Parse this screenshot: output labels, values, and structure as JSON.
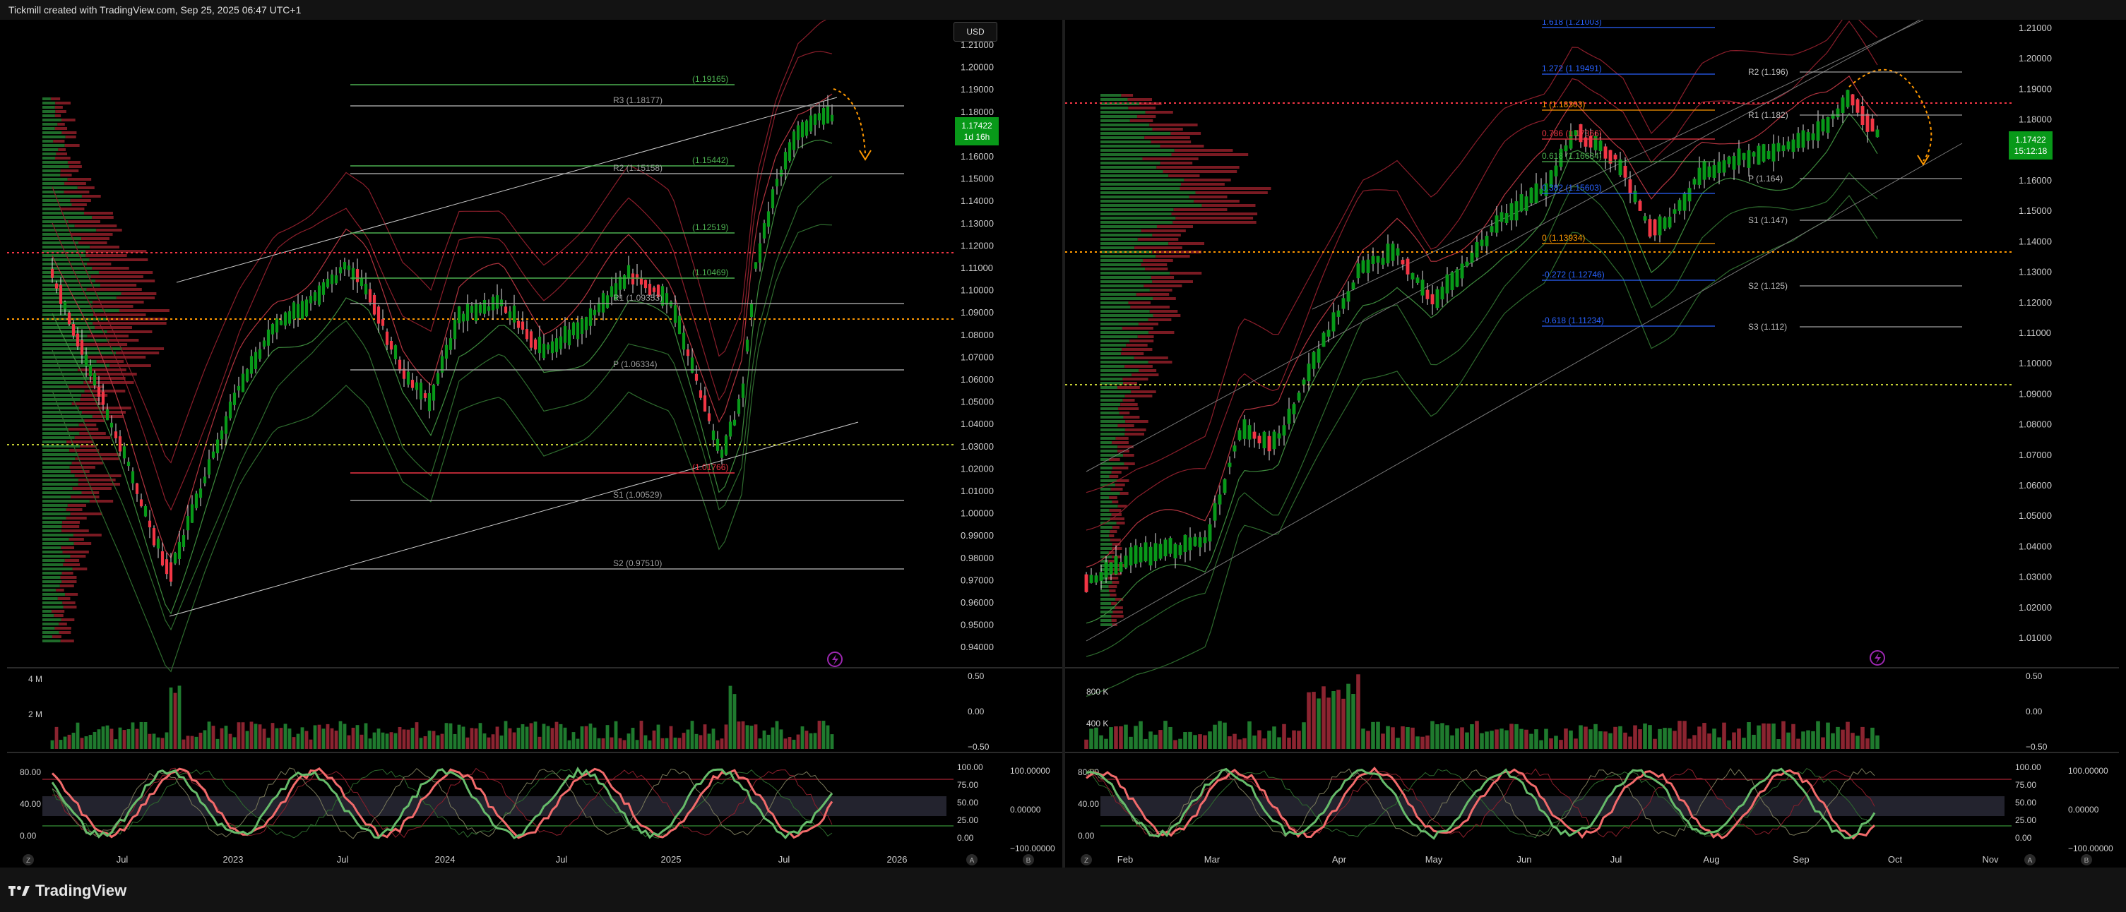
{
  "header": {
    "caption": "Tickmill created with TradingView.com, Sep 25, 2025 06:47 UTC+1"
  },
  "footer": {
    "brand": "TradingView"
  },
  "left_chart": {
    "currency": "USD",
    "price_tag": {
      "value": "1.17422",
      "countdown": "1d 16h"
    },
    "price_axis": [
      "1.21000",
      "1.20000",
      "1.19000",
      "1.18000",
      "1.17000",
      "1.16000",
      "1.15000",
      "1.14000",
      "1.13000",
      "1.12000",
      "1.11000",
      "1.10000",
      "1.09000",
      "1.08000",
      "1.07000",
      "1.06000",
      "1.05000",
      "1.04000",
      "1.03000",
      "1.02000",
      "1.01000",
      "1.00000",
      "0.99000",
      "0.98000",
      "0.97000",
      "0.96000",
      "0.95000",
      "0.94000"
    ],
    "levels": [
      {
        "label": "(1.19165)",
        "color": "#4caf50"
      },
      {
        "label": "R3 (1.18177)",
        "color": "#9e9e9e"
      },
      {
        "label": "(1.15442)",
        "color": "#4caf50"
      },
      {
        "label": "R2 (1.15158)",
        "color": "#9e9e9e"
      },
      {
        "label": "(1.12519)",
        "color": "#4caf50"
      },
      {
        "label": "(1.10469)",
        "color": "#4caf50"
      },
      {
        "label": "R1 (1.09353)",
        "color": "#9e9e9e"
      },
      {
        "label": "P (1.06334)",
        "color": "#9e9e9e"
      },
      {
        "label": "(1.01766)",
        "color": "#f23645"
      },
      {
        "label": "S1 (1.00529)",
        "color": "#9e9e9e"
      },
      {
        "label": "S2 (0.97510)",
        "color": "#9e9e9e"
      }
    ],
    "volume_axis": [
      "4 M",
      "2 M"
    ],
    "volume_right": [
      "0.50",
      "0.00",
      "−0.50"
    ],
    "osc_axis": [
      "80.00",
      "40.00",
      "0.00"
    ],
    "osc_right_a": [
      "100.00",
      "75.00",
      "50.00",
      "25.00",
      "0.00"
    ],
    "osc_right_b": [
      "100.00000",
      "0.00000",
      "−100.00000"
    ],
    "time_axis": [
      "Jul",
      "2023",
      "Jul",
      "2024",
      "Jul",
      "2025",
      "Jul",
      "2026"
    ],
    "corner_buttons": [
      "Z",
      "A",
      "B"
    ]
  },
  "right_chart": {
    "price_tag": {
      "value": "1.17422",
      "countdown": "15:12:18"
    },
    "price_axis": [
      "1.21000",
      "1.20000",
      "1.19000",
      "1.18000",
      "1.17000",
      "1.16000",
      "1.15000",
      "1.14000",
      "1.13000",
      "1.12000",
      "1.11000",
      "1.10000",
      "1.09000",
      "1.08000",
      "1.07000",
      "1.06000",
      "1.05000",
      "1.04000",
      "1.03000",
      "1.02000",
      "1.01000"
    ],
    "fib_levels": [
      {
        "label": "1.618 (1.21003)",
        "color": "#2962ff"
      },
      {
        "label": "1.272 (1.19491)",
        "color": "#2962ff"
      },
      {
        "label": "1 (1.18303)",
        "color": "#ff9800"
      },
      {
        "label": "0.786 (1.17366)",
        "color": "#f23645"
      },
      {
        "label": "0.618 (1.16634)",
        "color": "#4caf50"
      },
      {
        "label": "0.382 (1.15603)",
        "color": "#2962ff"
      },
      {
        "label": "0 (1.13934)",
        "color": "#ff9800"
      },
      {
        "label": "-0.272 (1.12746)",
        "color": "#2962ff"
      },
      {
        "label": "-0.618 (1.11234)",
        "color": "#2962ff"
      }
    ],
    "pivots": [
      "R2 (1.196)",
      "R1 (1.182)",
      "P (1.164)",
      "S1 (1.147)",
      "S2 (1.125)",
      "S3 (1.112)"
    ],
    "volume_axis": [
      "800 K",
      "400 K"
    ],
    "volume_right": [
      "0.50",
      "0.00",
      "−0.50"
    ],
    "osc_axis": [
      "80.00",
      "40.00",
      "0.00"
    ],
    "osc_right_a": [
      "100.00",
      "75.00",
      "50.00",
      "25.00",
      "0.00"
    ],
    "osc_right_b": [
      "100.00000",
      "0.00000",
      "−100.00000"
    ],
    "time_axis": [
      "Feb",
      "Mar",
      "Apr",
      "May",
      "Jun",
      "Jul",
      "Aug",
      "Sep",
      "Oct",
      "Nov"
    ],
    "corner_buttons": [
      "Z",
      "A",
      "B"
    ]
  },
  "icons": {
    "lightning": "lightning-icon",
    "logo": "tradingview-logo-icon"
  },
  "colors": {
    "up": "#26a69a",
    "bull": "#089919",
    "bear": "#f23645",
    "fib_blue": "#2962ff",
    "orange": "#ff9800"
  }
}
